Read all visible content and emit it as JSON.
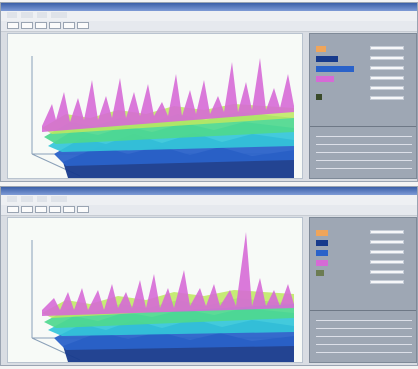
{
  "windows": [
    {
      "peak_label": "",
      "stamp": ""
    },
    {
      "peak_label": "",
      "stamp": ""
    }
  ],
  "colors": {
    "violet": "#d66ad6",
    "yellow_green": "#bde75f",
    "green": "#4ed88e",
    "cyan": "#33c6d9",
    "blue": "#2a62c9",
    "navy": "#173a8c",
    "sidebar_bg": "#9ea7b4"
  }
}
